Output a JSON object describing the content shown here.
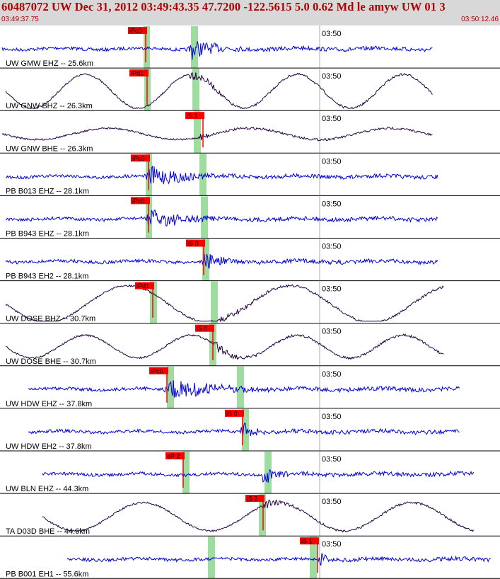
{
  "header": {
    "title": "60487072 UW Dec 31, 2012 03:49:43.35    47.7200 -122.5615  5.0 0.62 Md le amyw UW 01   3",
    "time_start": "03:49:37.75",
    "time_end": "03:50:12.46"
  },
  "time_mark_label": "03:50",
  "colors": {
    "header_bg": "#d8d8d8",
    "header_text": "#b00000",
    "trace_blue": "#0000dd",
    "trace_dark": "#200040",
    "pick_red": "#ff0000",
    "window_green": "#9fdc9f",
    "grid_gray": "#aaaaaa"
  },
  "traces": [
    {
      "label": "UW GMW EHZ -- 25.6km",
      "pick": "iPc0",
      "color": "blue"
    },
    {
      "label": "UW GNW BHZ -- 26.3km",
      "pick": "iPd1",
      "color": "dark"
    },
    {
      "label": "UW GNW BHE -- 26.3km",
      "pick": "iS 1",
      "color": "dark"
    },
    {
      "label": "PB B013 EHZ -- 28.1km",
      "pick": "iPc0",
      "color": "blue"
    },
    {
      "label": "PB B943 EHZ -- 28.1km",
      "pick": "iPc0",
      "color": "blue"
    },
    {
      "label": "PB B943 EH2 -- 28.1km",
      "pick": "iS 0",
      "color": "blue"
    },
    {
      "label": "UW DOSE BHZ -- 30.7km",
      "pick": "iPd1",
      "color": "dark"
    },
    {
      "label": "UW DOSE BHE -- 30.7km",
      "pick": "iS 0",
      "color": "dark"
    },
    {
      "label": "UW HDW EHZ -- 37.8km",
      "pick": "iPc0",
      "color": "blue"
    },
    {
      "label": "UW HDW EH2 -- 37.8km",
      "pick": "iS 0",
      "color": "blue"
    },
    {
      "label": "UW BLN EHZ -- 44.3km",
      "pick": "eP 2",
      "color": "blue"
    },
    {
      "label": "TA D03D BHE -- 44.6km",
      "pick": "iS 2",
      "color": "dark"
    },
    {
      "label": "PB B001 EH1 -- 55.6km",
      "pick": "iS 1",
      "color": "blue"
    }
  ]
}
